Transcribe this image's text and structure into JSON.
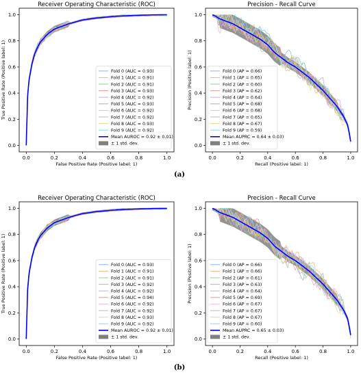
{
  "panels": [
    {
      "caption": "(a)",
      "chart_data": [
        {
          "type": "line",
          "title": "Receiver Operating Characteristic (ROC)",
          "xlabel": "False Positive Rate (Positive label: 1)",
          "ylabel": "True Positive Rate (Positive label: 1)",
          "xlim": [
            -0.05,
            1.05
          ],
          "ylim": [
            -0.05,
            1.05
          ],
          "xticks": [
            "0.0",
            "0.2",
            "0.4",
            "0.6",
            "0.8",
            "1.0"
          ],
          "yticks": [
            "0.0",
            "0.2",
            "0.4",
            "0.6",
            "0.8",
            "1.0"
          ],
          "legend_position": "lower-right",
          "mean_curve": {
            "x": [
              0,
              0.01,
              0.02,
              0.04,
              0.06,
              0.08,
              0.1,
              0.15,
              0.2,
              0.3,
              0.4,
              0.5,
              0.6,
              0.7,
              0.8,
              0.9,
              1.0
            ],
            "y": [
              0,
              0.38,
              0.5,
              0.62,
              0.7,
              0.75,
              0.79,
              0.85,
              0.89,
              0.93,
              0.96,
              0.975,
              0.985,
              0.992,
              0.996,
              0.999,
              1.0
            ]
          },
          "std_band_halfwidth": 0.015,
          "series": [
            {
              "name": "Fold 0 (AUC = 0.93)",
              "color": "#8ab4e8"
            },
            {
              "name": "Fold 1 (AUC = 0.91)",
              "color": "#f4b27a"
            },
            {
              "name": "Fold 2 (AUC = 0.91)",
              "color": "#8fd18f"
            },
            {
              "name": "Fold 3 (AUC = 0.93)",
              "color": "#ef9a9a"
            },
            {
              "name": "Fold 4 (AUC = 0.92)",
              "color": "#c6b0de"
            },
            {
              "name": "Fold 5 (AUC = 0.93)",
              "color": "#c8a79e"
            },
            {
              "name": "Fold 6 (AUC = 0.92)",
              "color": "#f2b6dc"
            },
            {
              "name": "Fold 7 (AUC = 0.92)",
              "color": "#b8b8b8"
            },
            {
              "name": "Fold 8 (AUC = 0.93)",
              "color": "#dede8a"
            },
            {
              "name": "Fold 9 (AUC = 0.92)",
              "color": "#8adce6"
            },
            {
              "name": "Mean AUROC = 0.92 ± 0.01)",
              "color": "#0000ff",
              "mean": true
            },
            {
              "name": "± 1 std. dev.",
              "color": "#808080",
              "band": true
            }
          ]
        },
        {
          "type": "line",
          "title": "Precision - Recall Curve",
          "xlabel": "Recall (Positive label: 1)",
          "ylabel": "Precision (Positive label: 1)",
          "xlim": [
            -0.05,
            1.05
          ],
          "ylim": [
            -0.05,
            1.05
          ],
          "xticks": [
            "0.0",
            "0.2",
            "0.4",
            "0.6",
            "0.8",
            "1.0"
          ],
          "yticks": [
            "0.0",
            "0.2",
            "0.4",
            "0.6",
            "0.8",
            "1.0"
          ],
          "legend_position": "lower-left",
          "mean_curve": {
            "x": [
              0,
              0.02,
              0.05,
              0.1,
              0.15,
              0.2,
              0.25,
              0.3,
              0.35,
              0.4,
              0.45,
              0.5,
              0.55,
              0.6,
              0.65,
              0.7,
              0.75,
              0.8,
              0.85,
              0.9,
              0.95,
              0.98,
              1.0
            ],
            "y": [
              1.0,
              0.99,
              0.97,
              0.95,
              0.93,
              0.9,
              0.87,
              0.84,
              0.81,
              0.77,
              0.71,
              0.67,
              0.63,
              0.6,
              0.56,
              0.52,
              0.47,
              0.42,
              0.36,
              0.3,
              0.22,
              0.15,
              0.03
            ]
          },
          "std_band_halfwidth": 0.05,
          "series": [
            {
              "name": "Fold 0 (AP = 0.66)",
              "color": "#8ab4e8"
            },
            {
              "name": "Fold 1 (AP = 0.65)",
              "color": "#f4b27a"
            },
            {
              "name": "Fold 2 (AP = 0.60)",
              "color": "#8fd18f"
            },
            {
              "name": "Fold 3 (AP = 0.62)",
              "color": "#ef9a9a"
            },
            {
              "name": "Fold 4 (AP = 0.64)",
              "color": "#c6b0de"
            },
            {
              "name": "Fold 5 (AP = 0.68)",
              "color": "#c8a79e"
            },
            {
              "name": "Fold 6 (AP = 0.68)",
              "color": "#f2b6dc"
            },
            {
              "name": "Fold 7 (AP = 0.65)",
              "color": "#b8b8b8"
            },
            {
              "name": "Fold 8 (AP = 0.67)",
              "color": "#dede8a"
            },
            {
              "name": "Fold 9 (AP = 0.59)",
              "color": "#8adce6"
            },
            {
              "name": "Mean AUPRC = 0.64 ± 0.03)",
              "color": "#0000ff",
              "mean": true
            },
            {
              "name": "± 1 std. dev.",
              "color": "#808080",
              "band": true
            }
          ]
        }
      ]
    },
    {
      "caption": "(b)",
      "chart_data": [
        {
          "type": "line",
          "title": "Receiver Operating Characteristic (ROC)",
          "xlabel": "False Positive Rate (Positive label: 1)",
          "ylabel": "True Positive Rate (Positive label: 1)",
          "xlim": [
            -0.05,
            1.05
          ],
          "ylim": [
            -0.05,
            1.05
          ],
          "xticks": [
            "0.0",
            "0.2",
            "0.4",
            "0.6",
            "0.8",
            "1.0"
          ],
          "yticks": [
            "0.0",
            "0.2",
            "0.4",
            "0.6",
            "0.8",
            "1.0"
          ],
          "legend_position": "lower-right",
          "mean_curve": {
            "x": [
              0,
              0.01,
              0.02,
              0.04,
              0.06,
              0.08,
              0.1,
              0.15,
              0.2,
              0.3,
              0.4,
              0.5,
              0.6,
              0.7,
              0.8,
              0.9,
              1.0
            ],
            "y": [
              0,
              0.38,
              0.5,
              0.62,
              0.7,
              0.75,
              0.79,
              0.85,
              0.89,
              0.93,
              0.96,
              0.975,
              0.985,
              0.992,
              0.996,
              0.999,
              1.0
            ]
          },
          "std_band_halfwidth": 0.015,
          "series": [
            {
              "name": "Fold 0 (AUC = 0.93)",
              "color": "#8ab4e8"
            },
            {
              "name": "Fold 1 (AUC = 0.91)",
              "color": "#f4b27a"
            },
            {
              "name": "Fold 2 (AUC = 0.91)",
              "color": "#8fd18f"
            },
            {
              "name": "Fold 3 (AUC = 0.92)",
              "color": "#ef9a9a"
            },
            {
              "name": "Fold 4 (AUC = 0.92)",
              "color": "#c6b0de"
            },
            {
              "name": "Fold 5 (AUC = 0.94)",
              "color": "#c8a79e"
            },
            {
              "name": "Fold 6 (AUC = 0.92)",
              "color": "#f2b6dc"
            },
            {
              "name": "Fold 7 (AUC = 0.92)",
              "color": "#b8b8b8"
            },
            {
              "name": "Fold 8 (AUC = 0.93)",
              "color": "#dede8a"
            },
            {
              "name": "Fold 9 (AUC = 0.92)",
              "color": "#8adce6"
            },
            {
              "name": "Mean AUROC = 0.92 ± 0.01)",
              "color": "#0000ff",
              "mean": true
            },
            {
              "name": "± 1 std. dev.",
              "color": "#808080",
              "band": true
            }
          ]
        },
        {
          "type": "line",
          "title": "Precision - Recall Curve",
          "xlabel": "Recall (Positive label: 1)",
          "ylabel": "Precision (Positive label: 1)",
          "xlim": [
            -0.05,
            1.05
          ],
          "ylim": [
            -0.05,
            1.05
          ],
          "xticks": [
            "0.0",
            "0.2",
            "0.4",
            "0.6",
            "0.8",
            "1.0"
          ],
          "yticks": [
            "0.0",
            "0.2",
            "0.4",
            "0.6",
            "0.8",
            "1.0"
          ],
          "legend_position": "lower-left",
          "mean_curve": {
            "x": [
              0,
              0.02,
              0.05,
              0.1,
              0.15,
              0.2,
              0.25,
              0.3,
              0.35,
              0.4,
              0.45,
              0.5,
              0.55,
              0.6,
              0.65,
              0.7,
              0.75,
              0.8,
              0.85,
              0.9,
              0.95,
              0.98,
              1.0
            ],
            "y": [
              1.0,
              0.99,
              0.97,
              0.95,
              0.93,
              0.9,
              0.87,
              0.84,
              0.81,
              0.77,
              0.71,
              0.67,
              0.63,
              0.6,
              0.56,
              0.52,
              0.47,
              0.42,
              0.36,
              0.3,
              0.22,
              0.15,
              0.03
            ]
          },
          "std_band_halfwidth": 0.05,
          "series": [
            {
              "name": "Fold 0 (AP = 0.66)",
              "color": "#8ab4e8"
            },
            {
              "name": "Fold 1 (AP = 0.66)",
              "color": "#f4b27a"
            },
            {
              "name": "Fold 2 (AP = 0.61)",
              "color": "#8fd18f"
            },
            {
              "name": "Fold 3 (AP = 0.63)",
              "color": "#ef9a9a"
            },
            {
              "name": "Fold 4 (AP = 0.64)",
              "color": "#c6b0de"
            },
            {
              "name": "Fold 5 (AP = 0.69)",
              "color": "#c8a79e"
            },
            {
              "name": "Fold 6 (AP = 0.67)",
              "color": "#f2b6dc"
            },
            {
              "name": "Fold 7 (AP = 0.67)",
              "color": "#b8b8b8"
            },
            {
              "name": "Fold 8 (AP = 0.67)",
              "color": "#dede8a"
            },
            {
              "name": "Fold 9 (AP = 0.60)",
              "color": "#8adce6"
            },
            {
              "name": "Mean AUPRC = 0.65 ± 0.03)",
              "color": "#0000ff",
              "mean": true
            },
            {
              "name": "± 1 std. dev.",
              "color": "#808080",
              "band": true
            }
          ]
        }
      ]
    }
  ]
}
